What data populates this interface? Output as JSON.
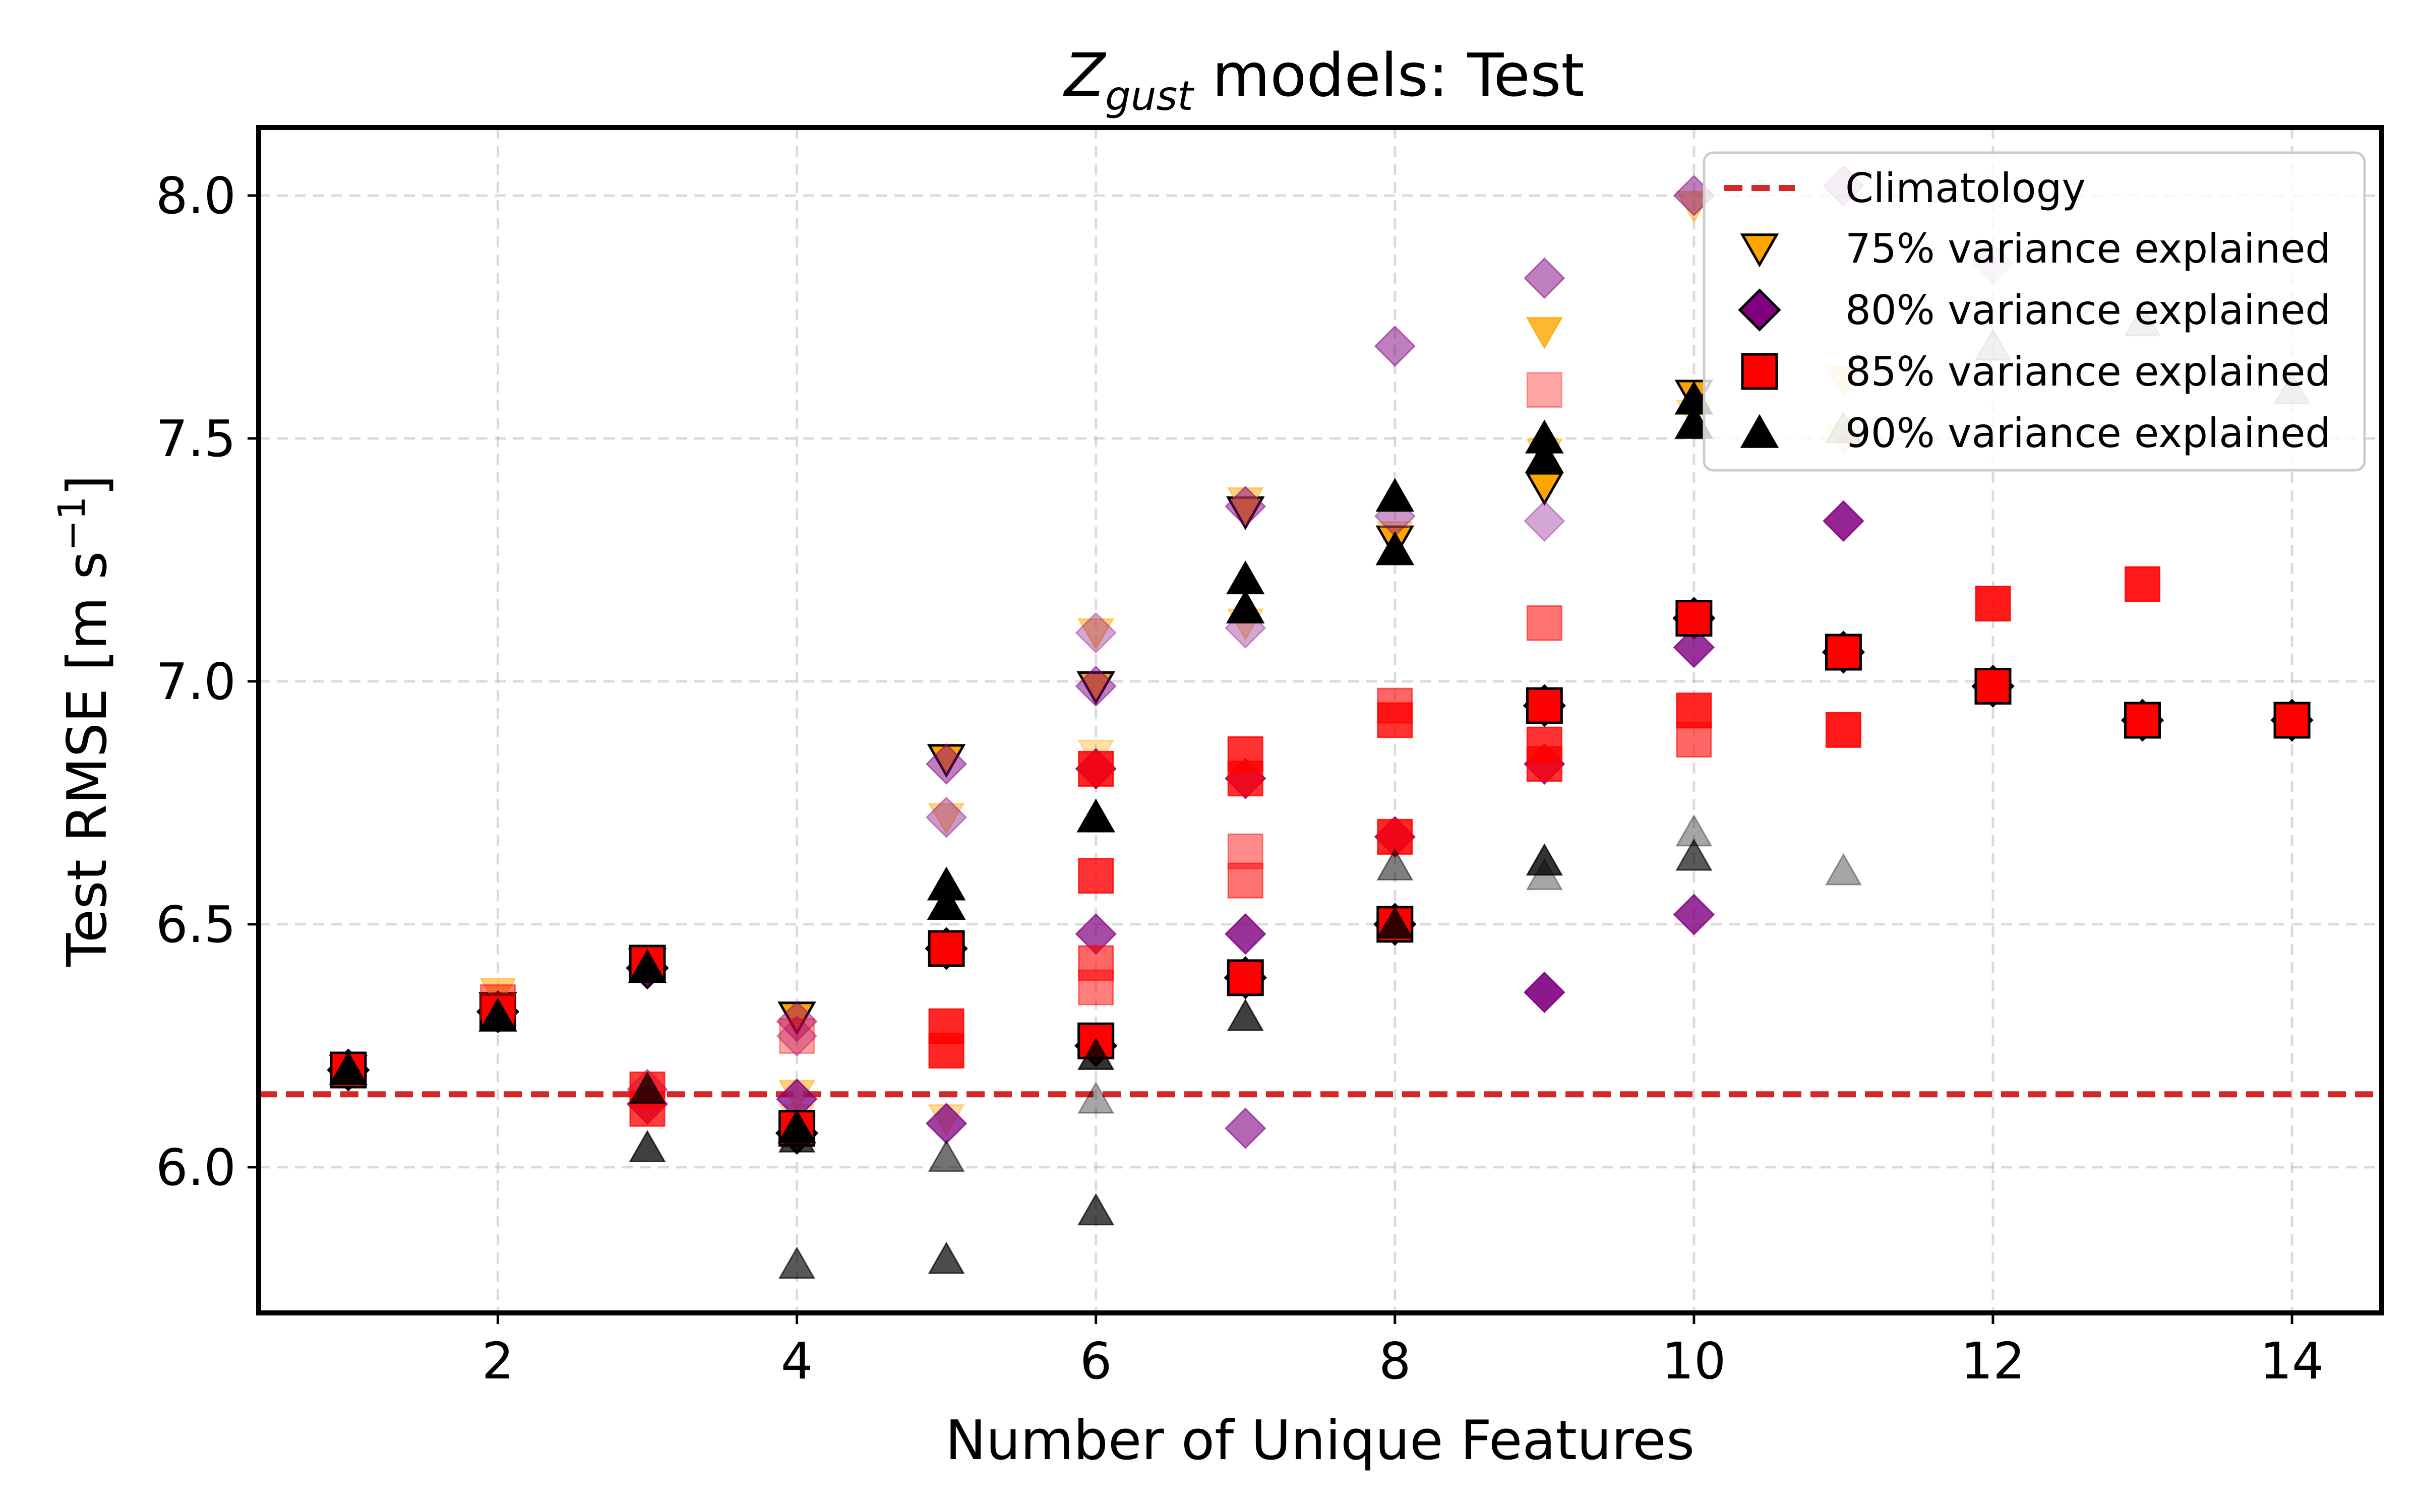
{
  "chart_data": {
    "type": "scatter",
    "title": {
      "main": "Z",
      "sub": "gust",
      "rest": " models: Test"
    },
    "xlabel": "Number of Unique Features",
    "ylabel": {
      "main": "Test RMSE [m s",
      "sup": "−1",
      "end": "]"
    },
    "xlim": [
      0.4,
      14.6
    ],
    "ylim": [
      5.7,
      8.14
    ],
    "xticks": [
      2,
      4,
      6,
      8,
      10,
      12,
      14
    ],
    "xtick_labels": [
      "2",
      "4",
      "6",
      "8",
      "10",
      "12",
      "14"
    ],
    "yticks": [
      6.0,
      6.5,
      7.0,
      7.5,
      8.0
    ],
    "ytick_labels": [
      "6.0",
      "6.5",
      "7.0",
      "7.5",
      "8.0"
    ],
    "grid": true,
    "legend_position": "top-right",
    "reference_line": {
      "name": "Climatology",
      "y": 6.15,
      "color": "#d62728",
      "style": "dashed"
    },
    "series": [
      {
        "name": "75% variance explained",
        "marker": "triangle-down",
        "color": "#ffa500",
        "points": [
          {
            "x": 1,
            "y": 6.2,
            "o": 1
          },
          {
            "x": 2,
            "y": 6.33,
            "o": 1
          },
          {
            "x": 2,
            "y": 6.36,
            "o": 0.55
          },
          {
            "x": 3,
            "y": 6.42,
            "o": 1
          },
          {
            "x": 3,
            "y": 6.12,
            "o": 0.4
          },
          {
            "x": 4,
            "y": 6.31,
            "o": 1
          },
          {
            "x": 4,
            "y": 6.15,
            "o": 0.5
          },
          {
            "x": 4,
            "y": 6.1,
            "o": 0.35
          },
          {
            "x": 5,
            "y": 6.84,
            "o": 1
          },
          {
            "x": 5,
            "y": 6.72,
            "o": 0.45
          },
          {
            "x": 5,
            "y": 6.1,
            "o": 0.4
          },
          {
            "x": 6,
            "y": 6.99,
            "o": 1
          },
          {
            "x": 6,
            "y": 7.1,
            "o": 0.5
          },
          {
            "x": 6,
            "y": 6.85,
            "o": 0.35
          },
          {
            "x": 7,
            "y": 7.35,
            "o": 1
          },
          {
            "x": 7,
            "y": 7.37,
            "o": 0.5
          },
          {
            "x": 7,
            "y": 7.12,
            "o": 0.4
          },
          {
            "x": 8,
            "y": 7.29,
            "o": 1
          },
          {
            "x": 8,
            "y": 7.3,
            "o": 0.4
          },
          {
            "x": 9,
            "y": 7.4,
            "o": 1
          },
          {
            "x": 9,
            "y": 7.72,
            "o": 0.8
          },
          {
            "x": 9,
            "y": 7.47,
            "o": 0.5
          },
          {
            "x": 10,
            "y": 7.59,
            "o": 1
          },
          {
            "x": 10,
            "y": 7.98,
            "o": 0.5
          },
          {
            "x": 10,
            "y": 7.55,
            "o": 0.35
          },
          {
            "x": 11,
            "y": 7.62,
            "o": 0.3
          },
          {
            "x": 11,
            "y": 7.5,
            "o": 0.25
          }
        ]
      },
      {
        "name": "80% variance explained",
        "marker": "diamond",
        "color": "#800080",
        "points": [
          {
            "x": 1,
            "y": 6.2,
            "o": 1
          },
          {
            "x": 2,
            "y": 6.32,
            "o": 1
          },
          {
            "x": 3,
            "y": 6.41,
            "o": 1
          },
          {
            "x": 3,
            "y": 6.16,
            "o": 0.45
          },
          {
            "x": 3,
            "y": 6.13,
            "o": 0.75
          },
          {
            "x": 4,
            "y": 6.07,
            "o": 1
          },
          {
            "x": 4,
            "y": 6.3,
            "o": 0.45
          },
          {
            "x": 4,
            "y": 6.27,
            "o": 0.35
          },
          {
            "x": 4,
            "y": 6.14,
            "o": 0.75
          },
          {
            "x": 5,
            "y": 6.45,
            "o": 1
          },
          {
            "x": 5,
            "y": 6.83,
            "o": 0.5
          },
          {
            "x": 5,
            "y": 6.72,
            "o": 0.4
          },
          {
            "x": 5,
            "y": 6.09,
            "o": 0.75
          },
          {
            "x": 6,
            "y": 6.25,
            "o": 1
          },
          {
            "x": 6,
            "y": 7.1,
            "o": 0.35
          },
          {
            "x": 6,
            "y": 6.99,
            "o": 0.5
          },
          {
            "x": 6,
            "y": 6.82,
            "o": 0.8
          },
          {
            "x": 6,
            "y": 6.48,
            "o": 0.7
          },
          {
            "x": 7,
            "y": 6.39,
            "o": 1
          },
          {
            "x": 7,
            "y": 7.36,
            "o": 0.5
          },
          {
            "x": 7,
            "y": 7.11,
            "o": 0.35
          },
          {
            "x": 7,
            "y": 6.8,
            "o": 0.8
          },
          {
            "x": 7,
            "y": 6.48,
            "o": 0.8
          },
          {
            "x": 7,
            "y": 6.08,
            "o": 0.6
          },
          {
            "x": 8,
            "y": 6.5,
            "o": 1
          },
          {
            "x": 8,
            "y": 7.69,
            "o": 0.5
          },
          {
            "x": 8,
            "y": 7.34,
            "o": 0.4
          },
          {
            "x": 8,
            "y": 6.68,
            "o": 0.8
          },
          {
            "x": 9,
            "y": 6.95,
            "o": 1
          },
          {
            "x": 9,
            "y": 7.83,
            "o": 0.5
          },
          {
            "x": 9,
            "y": 7.33,
            "o": 0.35
          },
          {
            "x": 9,
            "y": 6.83,
            "o": 0.8
          },
          {
            "x": 9,
            "y": 6.36,
            "o": 0.9
          },
          {
            "x": 10,
            "y": 7.13,
            "o": 1
          },
          {
            "x": 10,
            "y": 8.0,
            "o": 0.5
          },
          {
            "x": 10,
            "y": 7.07,
            "o": 0.8
          },
          {
            "x": 10,
            "y": 6.52,
            "o": 0.8
          },
          {
            "x": 11,
            "y": 7.06,
            "o": 1
          },
          {
            "x": 11,
            "y": 8.02,
            "o": 0.35
          },
          {
            "x": 11,
            "y": 7.33,
            "o": 0.85
          },
          {
            "x": 12,
            "y": 6.99,
            "o": 1
          },
          {
            "x": 12,
            "y": 7.86,
            "o": 0.2
          },
          {
            "x": 13,
            "y": 6.92,
            "o": 1
          },
          {
            "x": 14,
            "y": 6.92,
            "o": 1
          }
        ]
      },
      {
        "name": "85% variance explained",
        "marker": "square",
        "color": "#ff0000",
        "points": [
          {
            "x": 1,
            "y": 6.2,
            "o": 1
          },
          {
            "x": 2,
            "y": 6.32,
            "o": 1
          },
          {
            "x": 2,
            "y": 6.34,
            "o": 0.5
          },
          {
            "x": 3,
            "y": 6.42,
            "o": 1
          },
          {
            "x": 3,
            "y": 6.16,
            "o": 0.75
          },
          {
            "x": 3,
            "y": 6.12,
            "o": 0.75
          },
          {
            "x": 4,
            "y": 6.08,
            "o": 1
          },
          {
            "x": 4,
            "y": 6.27,
            "o": 0.35
          },
          {
            "x": 5,
            "y": 6.45,
            "o": 1
          },
          {
            "x": 5,
            "y": 6.29,
            "o": 0.85
          },
          {
            "x": 5,
            "y": 6.24,
            "o": 0.85
          },
          {
            "x": 6,
            "y": 6.26,
            "o": 1
          },
          {
            "x": 6,
            "y": 6.82,
            "o": 0.85
          },
          {
            "x": 6,
            "y": 6.6,
            "o": 0.8
          },
          {
            "x": 6,
            "y": 6.42,
            "o": 0.6
          },
          {
            "x": 6,
            "y": 6.37,
            "o": 0.5
          },
          {
            "x": 7,
            "y": 6.39,
            "o": 1
          },
          {
            "x": 7,
            "y": 6.85,
            "o": 0.8
          },
          {
            "x": 7,
            "y": 6.8,
            "o": 0.8
          },
          {
            "x": 7,
            "y": 6.65,
            "o": 0.45
          },
          {
            "x": 7,
            "y": 6.59,
            "o": 0.55
          },
          {
            "x": 8,
            "y": 6.5,
            "o": 1
          },
          {
            "x": 8,
            "y": 6.95,
            "o": 0.6
          },
          {
            "x": 8,
            "y": 6.92,
            "o": 0.8
          },
          {
            "x": 8,
            "y": 6.68,
            "o": 0.85
          },
          {
            "x": 9,
            "y": 6.95,
            "o": 1
          },
          {
            "x": 9,
            "y": 7.6,
            "o": 0.35
          },
          {
            "x": 9,
            "y": 7.12,
            "o": 0.55
          },
          {
            "x": 9,
            "y": 6.87,
            "o": 0.8
          },
          {
            "x": 9,
            "y": 6.83,
            "o": 0.8
          },
          {
            "x": 10,
            "y": 7.13,
            "o": 1
          },
          {
            "x": 10,
            "y": 6.94,
            "o": 0.85
          },
          {
            "x": 10,
            "y": 6.88,
            "o": 0.6
          },
          {
            "x": 11,
            "y": 7.06,
            "o": 1
          },
          {
            "x": 11,
            "y": 6.9,
            "o": 0.9
          },
          {
            "x": 12,
            "y": 6.99,
            "o": 1
          },
          {
            "x": 12,
            "y": 7.16,
            "o": 0.9
          },
          {
            "x": 13,
            "y": 6.92,
            "o": 1
          },
          {
            "x": 13,
            "y": 7.2,
            "o": 0.9
          },
          {
            "x": 14,
            "y": 6.92,
            "o": 1
          }
        ]
      },
      {
        "name": "90% variance explained",
        "marker": "triangle-up",
        "color": "#000000",
        "points": [
          {
            "x": 1,
            "y": 6.2,
            "o": 1
          },
          {
            "x": 2,
            "y": 6.31,
            "o": 1
          },
          {
            "x": 3,
            "y": 6.41,
            "o": 1
          },
          {
            "x": 3,
            "y": 6.16,
            "o": 0.75
          },
          {
            "x": 3,
            "y": 6.04,
            "o": 0.75
          },
          {
            "x": 4,
            "y": 6.08,
            "o": 1
          },
          {
            "x": 4,
            "y": 6.06,
            "o": 0.75
          },
          {
            "x": 4,
            "y": 5.8,
            "o": 0.65
          },
          {
            "x": 5,
            "y": 6.58,
            "o": 1
          },
          {
            "x": 5,
            "y": 6.54,
            "o": 1
          },
          {
            "x": 5,
            "y": 6.02,
            "o": 0.55
          },
          {
            "x": 5,
            "y": 5.81,
            "o": 0.7
          },
          {
            "x": 6,
            "y": 6.72,
            "o": 1
          },
          {
            "x": 6,
            "y": 6.23,
            "o": 0.8
          },
          {
            "x": 6,
            "y": 6.14,
            "o": 0.35
          },
          {
            "x": 6,
            "y": 5.91,
            "o": 0.7
          },
          {
            "x": 7,
            "y": 7.21,
            "o": 1
          },
          {
            "x": 7,
            "y": 7.15,
            "o": 1
          },
          {
            "x": 7,
            "y": 6.31,
            "o": 0.75
          },
          {
            "x": 8,
            "y": 7.38,
            "o": 1
          },
          {
            "x": 8,
            "y": 7.27,
            "o": 1
          },
          {
            "x": 8,
            "y": 6.62,
            "o": 0.5
          },
          {
            "x": 8,
            "y": 6.5,
            "o": 0.8
          },
          {
            "x": 9,
            "y": 7.5,
            "o": 1
          },
          {
            "x": 9,
            "y": 7.46,
            "o": 1
          },
          {
            "x": 9,
            "y": 6.63,
            "o": 0.8
          },
          {
            "x": 9,
            "y": 6.6,
            "o": 0.35
          },
          {
            "x": 10,
            "y": 7.58,
            "o": 1
          },
          {
            "x": 10,
            "y": 7.53,
            "o": 1
          },
          {
            "x": 10,
            "y": 6.69,
            "o": 0.35
          },
          {
            "x": 10,
            "y": 6.64,
            "o": 0.65
          },
          {
            "x": 11,
            "y": 7.52,
            "o": 0.3
          },
          {
            "x": 11,
            "y": 6.61,
            "o": 0.35
          },
          {
            "x": 12,
            "y": 7.69,
            "o": 0.3
          },
          {
            "x": 13,
            "y": 7.74,
            "o": 0.3
          },
          {
            "x": 14,
            "y": 7.6,
            "o": 0.3
          }
        ]
      }
    ]
  }
}
